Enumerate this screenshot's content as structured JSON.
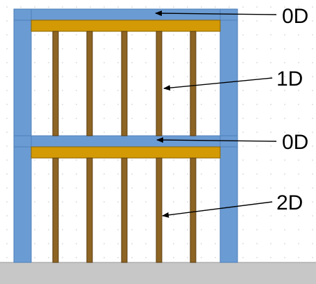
{
  "labels": {
    "top_beam": "0D",
    "upper_studs": "1D",
    "middle_beam": "0D",
    "lower_studs": "2D"
  },
  "colors": {
    "frame_blue": "#6a9bd3",
    "frame_edge": "#4f7fb8",
    "plate_gold": "#d39a06",
    "plate_edge": "#8a6300",
    "stud_fill": "#8d6423",
    "stud_edge": "#5a3d10",
    "ground": "#c7c7c7",
    "ground_edge": "#999999",
    "grid_dot": "#c8c8c8",
    "arrow": "#000000"
  }
}
